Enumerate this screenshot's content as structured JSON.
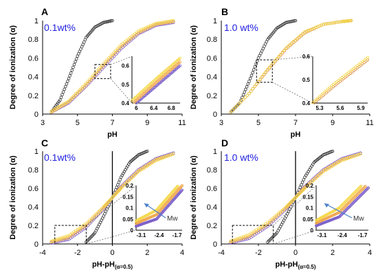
{
  "colors": {
    "black_series": "#333333",
    "purple_series": "#7b5fc9",
    "orange_series": "#f0a850",
    "yellow_series": "#f5d84a",
    "concentration_text": "#2020e0",
    "arrow": "#4a7fc8"
  },
  "chart_data": [
    {
      "type": "scatter",
      "panel_label": "A",
      "annotation": "0.1wt%",
      "xlabel": "pH",
      "ylabel": "Degree of ionization (α)",
      "xlim": [
        3,
        11
      ],
      "ylim": [
        0,
        1
      ],
      "xticks": [
        "3",
        "5",
        "7",
        "9",
        "11"
      ],
      "yticks": [
        "0",
        "0.2",
        "0.4",
        "0.6",
        "0.8",
        "1"
      ],
      "series": [
        {
          "color": "black_series",
          "x": [
            3.5,
            4.0,
            4.5,
            5.0,
            5.5,
            6.0,
            6.5,
            7.0
          ],
          "y": [
            0.02,
            0.15,
            0.38,
            0.62,
            0.82,
            0.93,
            0.98,
            1.0
          ]
        },
        {
          "color": "purple_series",
          "x": [
            3.5,
            4.5,
            5.5,
            6.5,
            7.5,
            8.5,
            9.5,
            10.5
          ],
          "y": [
            0.02,
            0.12,
            0.3,
            0.5,
            0.7,
            0.86,
            0.95,
            0.98
          ]
        },
        {
          "color": "orange_series",
          "x": [
            3.5,
            4.5,
            5.5,
            6.5,
            7.5,
            8.5,
            9.5,
            10.5
          ],
          "y": [
            0.02,
            0.13,
            0.31,
            0.52,
            0.72,
            0.87,
            0.96,
            0.99
          ]
        },
        {
          "color": "yellow_series",
          "x": [
            3.5,
            4.5,
            5.5,
            6.5,
            7.5,
            8.5,
            9.5,
            10.5
          ],
          "y": [
            0.03,
            0.14,
            0.33,
            0.54,
            0.74,
            0.89,
            0.97,
            1.0
          ]
        }
      ],
      "inset": {
        "xticks": [
          "6",
          "6.4",
          "6.8"
        ],
        "yticks": [
          "0.4",
          "0.5",
          "0.6"
        ],
        "xlim": [
          5.9,
          7.0
        ],
        "ylim": [
          0.4,
          0.65
        ]
      }
    },
    {
      "type": "scatter",
      "panel_label": "B",
      "annotation": "1.0 wt%",
      "xlabel": "pH",
      "ylabel": "Degree of ionization (α)",
      "xlim": [
        3,
        11
      ],
      "ylim": [
        0,
        1
      ],
      "xticks": [
        "3",
        "5",
        "7",
        "9",
        "11"
      ],
      "yticks": [
        "0",
        "0.2",
        "0.4",
        "0.6",
        "0.8",
        "1"
      ],
      "series": [
        {
          "color": "black_series",
          "x": [
            3.5,
            4.0,
            4.5,
            5.0,
            5.5,
            6.0,
            6.5,
            7.0
          ],
          "y": [
            0.02,
            0.12,
            0.35,
            0.6,
            0.8,
            0.92,
            0.98,
            1.0
          ]
        },
        {
          "color": "purple_series",
          "x": [
            3.5,
            4.5,
            5.5,
            6.5,
            7.5,
            8.5,
            9.5,
            10.0
          ],
          "y": [
            0.02,
            0.22,
            0.47,
            0.7,
            0.87,
            0.96,
            0.99,
            1.0
          ]
        },
        {
          "color": "orange_series",
          "x": [
            3.5,
            4.5,
            5.5,
            6.5,
            7.5,
            8.5,
            9.5,
            10.0
          ],
          "y": [
            0.02,
            0.22,
            0.47,
            0.7,
            0.87,
            0.96,
            0.99,
            1.0
          ]
        },
        {
          "color": "yellow_series",
          "x": [
            3.5,
            4.5,
            5.5,
            6.5,
            7.5,
            8.5,
            9.5,
            10.0
          ],
          "y": [
            0.02,
            0.22,
            0.48,
            0.71,
            0.88,
            0.96,
            0.99,
            1.0
          ]
        }
      ],
      "inset": {
        "xticks": [
          "5.3",
          "5.6",
          "5.9"
        ],
        "yticks": [
          "0.4",
          "0.5",
          "0.6"
        ],
        "xlim": [
          5.2,
          6.0
        ],
        "ylim": [
          0.4,
          0.6
        ]
      }
    },
    {
      "type": "scatter",
      "panel_label": "C",
      "annotation": "0.1wt%",
      "arrow_label": "Mw",
      "xlabel": "pH-pH",
      "xlabel_sub": "(α=0.5)",
      "ylabel": "Degree of ionization (α)",
      "xlim": [
        -4,
        4
      ],
      "ylim": [
        0,
        1
      ],
      "xticks": [
        "-4",
        "-2",
        "0",
        "2",
        "4"
      ],
      "yticks": [
        "0",
        "0.2",
        "0.4",
        "0.6",
        "0.8",
        "1"
      ],
      "series": [
        {
          "color": "black_series",
          "x": [
            -1.5,
            -1.0,
            -0.5,
            0.0,
            0.5,
            1.0,
            1.5,
            2.0
          ],
          "y": [
            0.02,
            0.12,
            0.3,
            0.5,
            0.72,
            0.88,
            0.96,
            1.0
          ]
        },
        {
          "color": "purple_series",
          "x": [
            -3.5,
            -2.5,
            -1.5,
            -0.5,
            0.0,
            0.5,
            1.5,
            2.5,
            3.5
          ],
          "y": [
            0.01,
            0.05,
            0.18,
            0.38,
            0.5,
            0.62,
            0.8,
            0.92,
            0.98
          ]
        },
        {
          "color": "orange_series",
          "x": [
            -3.5,
            -2.5,
            -1.5,
            -0.5,
            0.0,
            0.5,
            1.5,
            2.5,
            3.5
          ],
          "y": [
            0.02,
            0.07,
            0.2,
            0.39,
            0.5,
            0.61,
            0.79,
            0.91,
            0.97
          ]
        },
        {
          "color": "yellow_series",
          "x": [
            -3.5,
            -2.5,
            -1.5,
            -0.5,
            0.0,
            0.5,
            1.5,
            2.5,
            3.5
          ],
          "y": [
            0.03,
            0.09,
            0.22,
            0.4,
            0.5,
            0.6,
            0.78,
            0.9,
            0.97
          ]
        }
      ],
      "inset": {
        "xticks": [
          "-3.1",
          "-2.4",
          "-1.7"
        ],
        "yticks": [
          "0",
          "0.05",
          "0.1",
          "0.15",
          "0.2"
        ],
        "xlim": [
          -3.3,
          -1.5
        ],
        "ylim": [
          0,
          0.2
        ]
      }
    },
    {
      "type": "scatter",
      "panel_label": "D",
      "annotation": "1.0 wt%",
      "arrow_label": "Mw",
      "xlabel": "pH-pH",
      "xlabel_sub": "(α=0.5)",
      "ylabel": "Degree of ionization (α)",
      "xlim": [
        -4,
        4
      ],
      "ylim": [
        0,
        1
      ],
      "xticks": [
        "-4",
        "-2",
        "0",
        "2",
        "4"
      ],
      "yticks": [
        "0",
        "0.2",
        "0.4",
        "0.6",
        "0.8",
        "1"
      ],
      "series": [
        {
          "color": "black_series",
          "x": [
            -1.5,
            -1.0,
            -0.5,
            0.0,
            0.5,
            1.0,
            1.5,
            2.0
          ],
          "y": [
            0.02,
            0.12,
            0.3,
            0.5,
            0.72,
            0.88,
            0.96,
            1.0
          ]
        },
        {
          "color": "purple_series",
          "x": [
            -3.5,
            -2.5,
            -1.5,
            -0.5,
            0.0,
            0.5,
            1.5,
            2.5,
            3.5
          ],
          "y": [
            0.01,
            0.06,
            0.19,
            0.38,
            0.5,
            0.62,
            0.8,
            0.92,
            0.98
          ]
        },
        {
          "color": "orange_series",
          "x": [
            -3.5,
            -2.5,
            -1.5,
            -0.5,
            0.0,
            0.5,
            1.5,
            2.5,
            3.5
          ],
          "y": [
            0.02,
            0.08,
            0.21,
            0.39,
            0.5,
            0.61,
            0.79,
            0.91,
            0.97
          ]
        },
        {
          "color": "yellow_series",
          "x": [
            -3.5,
            -2.5,
            -1.5,
            -0.5,
            0.0,
            0.5,
            1.5,
            2.5,
            3.5
          ],
          "y": [
            0.03,
            0.1,
            0.23,
            0.4,
            0.5,
            0.6,
            0.78,
            0.9,
            0.97
          ]
        }
      ],
      "inset": {
        "xticks": [
          "-3.1",
          "-2.4",
          "-1.7"
        ],
        "yticks": [
          "0",
          "0.05",
          "0.1",
          "0.15",
          "0.2"
        ],
        "xlim": [
          -3.3,
          -1.5
        ],
        "ylim": [
          0,
          0.2
        ]
      }
    }
  ]
}
